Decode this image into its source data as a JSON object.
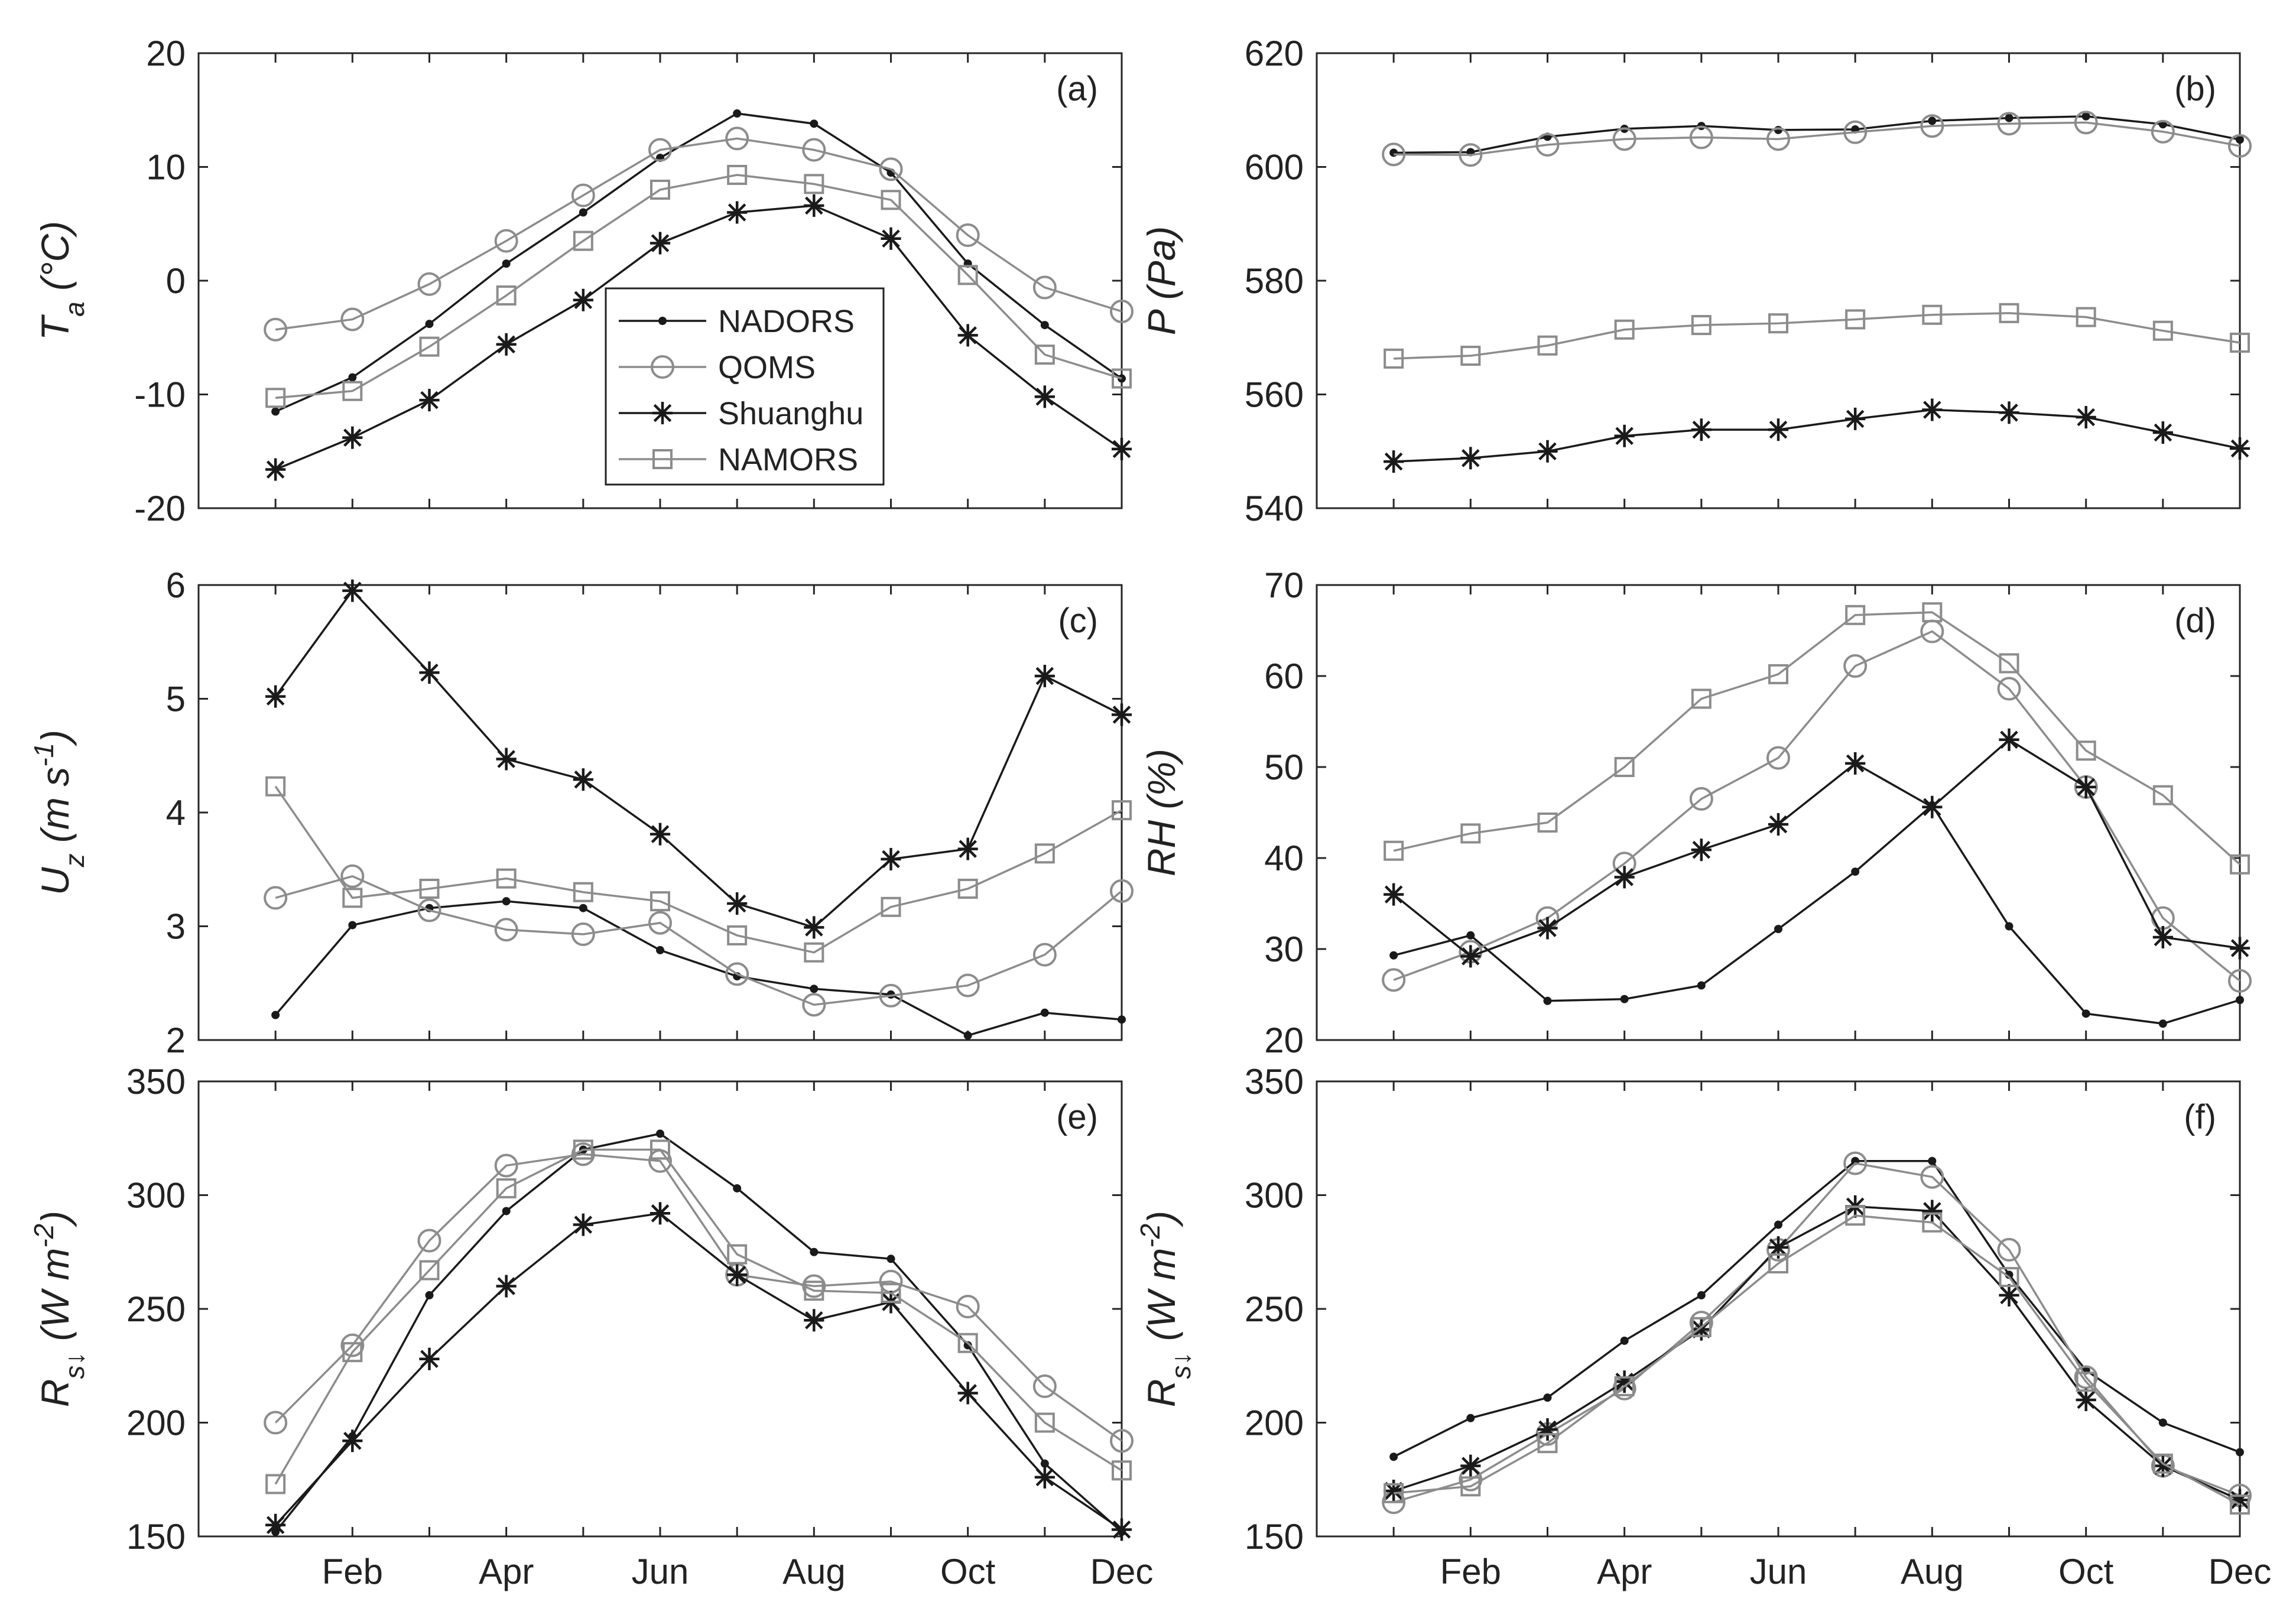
{
  "figure": {
    "legend": {
      "entries": [
        {
          "name": "NADORS",
          "marker": "dot",
          "color": "#1a1a1a"
        },
        {
          "name": "QOMS",
          "marker": "circle",
          "color": "#8c8c8c"
        },
        {
          "name": "Shuanghu",
          "marker": "asterisk",
          "color": "#1a1a1a"
        },
        {
          "name": "NAMORS",
          "marker": "square",
          "color": "#8c8c8c"
        }
      ]
    },
    "x_tick_labels": [
      "Feb",
      "Apr",
      "Jun",
      "Aug",
      "Oct",
      "Dec"
    ]
  },
  "chart_data": [
    {
      "type": "line",
      "panel_label": "(a)",
      "ylabel": "T_a (°C)",
      "ylim": [
        -20,
        20
      ],
      "yticks": [
        20,
        10,
        0,
        -10,
        -20
      ],
      "x": [
        1,
        2,
        3,
        4,
        5,
        6,
        7,
        8,
        9,
        10,
        11,
        12
      ],
      "x_tick_labels": [
        "Feb",
        "Apr",
        "Jun",
        "Aug",
        "Oct",
        "Dec"
      ],
      "grid": false,
      "legend": "center-left",
      "series": [
        {
          "name": "NADORS",
          "marker": "dot",
          "color": "#1a1a1a",
          "values": [
            -11.5,
            -8.5,
            -3.8,
            1.5,
            6.0,
            10.8,
            14.7,
            13.8,
            9.5,
            1.5,
            -3.9,
            -8.6
          ]
        },
        {
          "name": "QOMS",
          "marker": "circle",
          "color": "#8c8c8c",
          "values": [
            -4.3,
            -3.4,
            -0.3,
            3.5,
            7.5,
            11.5,
            12.5,
            11.5,
            9.8,
            4.0,
            -0.6,
            -2.7
          ]
        },
        {
          "name": "Shuanghu",
          "marker": "asterisk",
          "color": "#1a1a1a",
          "values": [
            -16.6,
            -13.8,
            -10.5,
            -5.6,
            -1.7,
            3.3,
            6.0,
            6.6,
            3.7,
            -4.8,
            -10.2,
            -14.8
          ]
        },
        {
          "name": "NAMORS",
          "marker": "square",
          "color": "#8c8c8c",
          "values": [
            -10.3,
            -9.7,
            -5.8,
            -1.3,
            3.5,
            8.0,
            9.3,
            8.5,
            7.1,
            0.5,
            -6.5,
            -8.6
          ]
        }
      ]
    },
    {
      "type": "line",
      "panel_label": "(b)",
      "ylabel": "P (Pa)",
      "ylim": [
        540,
        620
      ],
      "yticks": [
        620,
        600,
        580,
        560,
        540
      ],
      "x": [
        1,
        2,
        3,
        4,
        5,
        6,
        7,
        8,
        9,
        10,
        11,
        12
      ],
      "x_tick_labels": [
        "Feb",
        "Apr",
        "Jun",
        "Aug",
        "Oct",
        "Dec"
      ],
      "grid": false,
      "series": [
        {
          "name": "NADORS",
          "marker": "dot",
          "color": "#1a1a1a",
          "values": [
            602.5,
            602.6,
            605.3,
            606.7,
            607.2,
            606.5,
            606.6,
            608.1,
            608.6,
            608.9,
            607.5,
            604.8
          ]
        },
        {
          "name": "QOMS",
          "marker": "circle",
          "color": "#8c8c8c",
          "values": [
            602.2,
            602.1,
            603.9,
            604.9,
            605.2,
            604.9,
            606.1,
            607.2,
            607.6,
            607.8,
            606.2,
            603.7
          ]
        },
        {
          "name": "Shuanghu",
          "marker": "asterisk",
          "color": "#1a1a1a",
          "values": [
            548.2,
            548.8,
            550.0,
            552.7,
            553.8,
            553.8,
            555.7,
            557.3,
            556.8,
            556.0,
            553.3,
            550.5
          ]
        },
        {
          "name": "NAMORS",
          "marker": "square",
          "color": "#8c8c8c",
          "values": [
            566.3,
            566.8,
            568.6,
            571.4,
            572.2,
            572.5,
            573.2,
            574.0,
            574.3,
            573.6,
            571.2,
            569.1
          ]
        }
      ]
    },
    {
      "type": "line",
      "panel_label": "(c)",
      "ylabel": "U_z (m s^-1)",
      "ylim": [
        2,
        6
      ],
      "yticks": [
        6,
        5,
        4,
        3,
        2
      ],
      "x": [
        1,
        2,
        3,
        4,
        5,
        6,
        7,
        8,
        9,
        10,
        11,
        12
      ],
      "x_tick_labels": [
        "Feb",
        "Apr",
        "Jun",
        "Aug",
        "Oct",
        "Dec"
      ],
      "grid": false,
      "series": [
        {
          "name": "NADORS",
          "marker": "dot",
          "color": "#1a1a1a",
          "values": [
            2.22,
            3.01,
            3.16,
            3.22,
            3.16,
            2.79,
            2.56,
            2.45,
            2.4,
            2.04,
            2.24,
            2.18
          ]
        },
        {
          "name": "QOMS",
          "marker": "circle",
          "color": "#8c8c8c",
          "values": [
            3.25,
            3.44,
            3.14,
            2.97,
            2.93,
            3.03,
            2.58,
            2.31,
            2.39,
            2.48,
            2.75,
            3.31
          ]
        },
        {
          "name": "Shuanghu",
          "marker": "asterisk",
          "color": "#1a1a1a",
          "values": [
            5.02,
            5.95,
            5.23,
            4.47,
            4.29,
            3.81,
            3.2,
            2.99,
            3.59,
            3.68,
            5.2,
            4.86
          ]
        },
        {
          "name": "NAMORS",
          "marker": "square",
          "color": "#8c8c8c",
          "values": [
            4.23,
            3.25,
            3.33,
            3.42,
            3.3,
            3.22,
            2.92,
            2.77,
            3.17,
            3.33,
            3.64,
            4.02
          ]
        }
      ]
    },
    {
      "type": "line",
      "panel_label": "(d)",
      "ylabel": "RH (%)",
      "ylim": [
        20,
        70
      ],
      "yticks": [
        70,
        60,
        50,
        40,
        30,
        20
      ],
      "x": [
        1,
        2,
        3,
        4,
        5,
        6,
        7,
        8,
        9,
        10,
        11,
        12
      ],
      "x_tick_labels": [
        "Feb",
        "Apr",
        "Jun",
        "Aug",
        "Oct",
        "Dec"
      ],
      "grid": false,
      "series": [
        {
          "name": "NADORS",
          "marker": "dot",
          "color": "#1a1a1a",
          "values": [
            29.3,
            31.5,
            24.3,
            24.5,
            26.0,
            32.2,
            38.5,
            45.8,
            32.5,
            22.9,
            21.8,
            24.4
          ]
        },
        {
          "name": "QOMS",
          "marker": "circle",
          "color": "#8c8c8c",
          "values": [
            26.6,
            29.7,
            33.4,
            39.4,
            46.5,
            51.0,
            61.1,
            64.9,
            58.6,
            47.8,
            33.4,
            26.5
          ]
        },
        {
          "name": "Shuanghu",
          "marker": "asterisk",
          "color": "#1a1a1a",
          "values": [
            36.0,
            29.2,
            32.3,
            37.9,
            40.9,
            43.7,
            50.4,
            45.6,
            53.0,
            47.8,
            31.3,
            30.1
          ]
        },
        {
          "name": "NAMORS",
          "marker": "square",
          "color": "#8c8c8c",
          "values": [
            40.8,
            42.7,
            43.9,
            50.0,
            57.5,
            60.2,
            66.7,
            67.0,
            61.4,
            51.8,
            46.9,
            39.3
          ]
        }
      ]
    },
    {
      "type": "line",
      "panel_label": "(e)",
      "ylabel": "R_s↓ (W m^-2)",
      "ylim": [
        150,
        350
      ],
      "yticks": [
        350,
        300,
        250,
        200,
        150
      ],
      "x": [
        1,
        2,
        3,
        4,
        5,
        6,
        7,
        8,
        9,
        10,
        11,
        12
      ],
      "x_tick_labels": [
        "Feb",
        "Apr",
        "Jun",
        "Aug",
        "Oct",
        "Dec"
      ],
      "grid": false,
      "series": [
        {
          "name": "NADORS",
          "marker": "dot",
          "color": "#1a1a1a",
          "values": [
            152,
            194,
            256,
            293,
            320,
            327,
            303,
            275,
            272,
            234,
            182,
            152
          ]
        },
        {
          "name": "QOMS",
          "marker": "circle",
          "color": "#8c8c8c",
          "values": [
            200,
            234,
            280,
            313,
            318,
            315,
            265,
            260,
            262,
            251,
            216,
            192
          ]
        },
        {
          "name": "Shuanghu",
          "marker": "asterisk",
          "color": "#1a1a1a",
          "values": [
            155,
            192,
            228,
            260,
            287,
            292,
            265,
            245,
            253,
            213,
            176,
            153
          ]
        },
        {
          "name": "NAMORS",
          "marker": "square",
          "color": "#8c8c8c",
          "values": [
            173,
            231,
            267,
            303,
            320,
            320,
            274,
            258,
            257,
            235,
            200,
            179
          ]
        }
      ]
    },
    {
      "type": "line",
      "panel_label": "(f)",
      "ylabel": "R_s↓ (W m^-2)",
      "ylim": [
        150,
        350
      ],
      "yticks": [
        350,
        300,
        250,
        200,
        150
      ],
      "x": [
        1,
        2,
        3,
        4,
        5,
        6,
        7,
        8,
        9,
        10,
        11,
        12
      ],
      "x_tick_labels": [
        "Feb",
        "Apr",
        "Jun",
        "Aug",
        "Oct",
        "Dec"
      ],
      "grid": false,
      "series": [
        {
          "name": "NADORS",
          "marker": "dot",
          "color": "#1a1a1a",
          "values": [
            185,
            202,
            211,
            236,
            256,
            287,
            315,
            315,
            265,
            223,
            200,
            187
          ]
        },
        {
          "name": "QOMS",
          "marker": "circle",
          "color": "#8c8c8c",
          "values": [
            165,
            175,
            195,
            215,
            244,
            276,
            314,
            308,
            276,
            220,
            181,
            168
          ]
        },
        {
          "name": "Shuanghu",
          "marker": "asterisk",
          "color": "#1a1a1a",
          "values": [
            170,
            181,
            197,
            218,
            241,
            277,
            295,
            293,
            256,
            210,
            181,
            166
          ]
        },
        {
          "name": "NAMORS",
          "marker": "square",
          "color": "#8c8c8c",
          "values": [
            169,
            172,
            191,
            216,
            242,
            270,
            291,
            288,
            264,
            218,
            182,
            164
          ]
        }
      ]
    }
  ]
}
